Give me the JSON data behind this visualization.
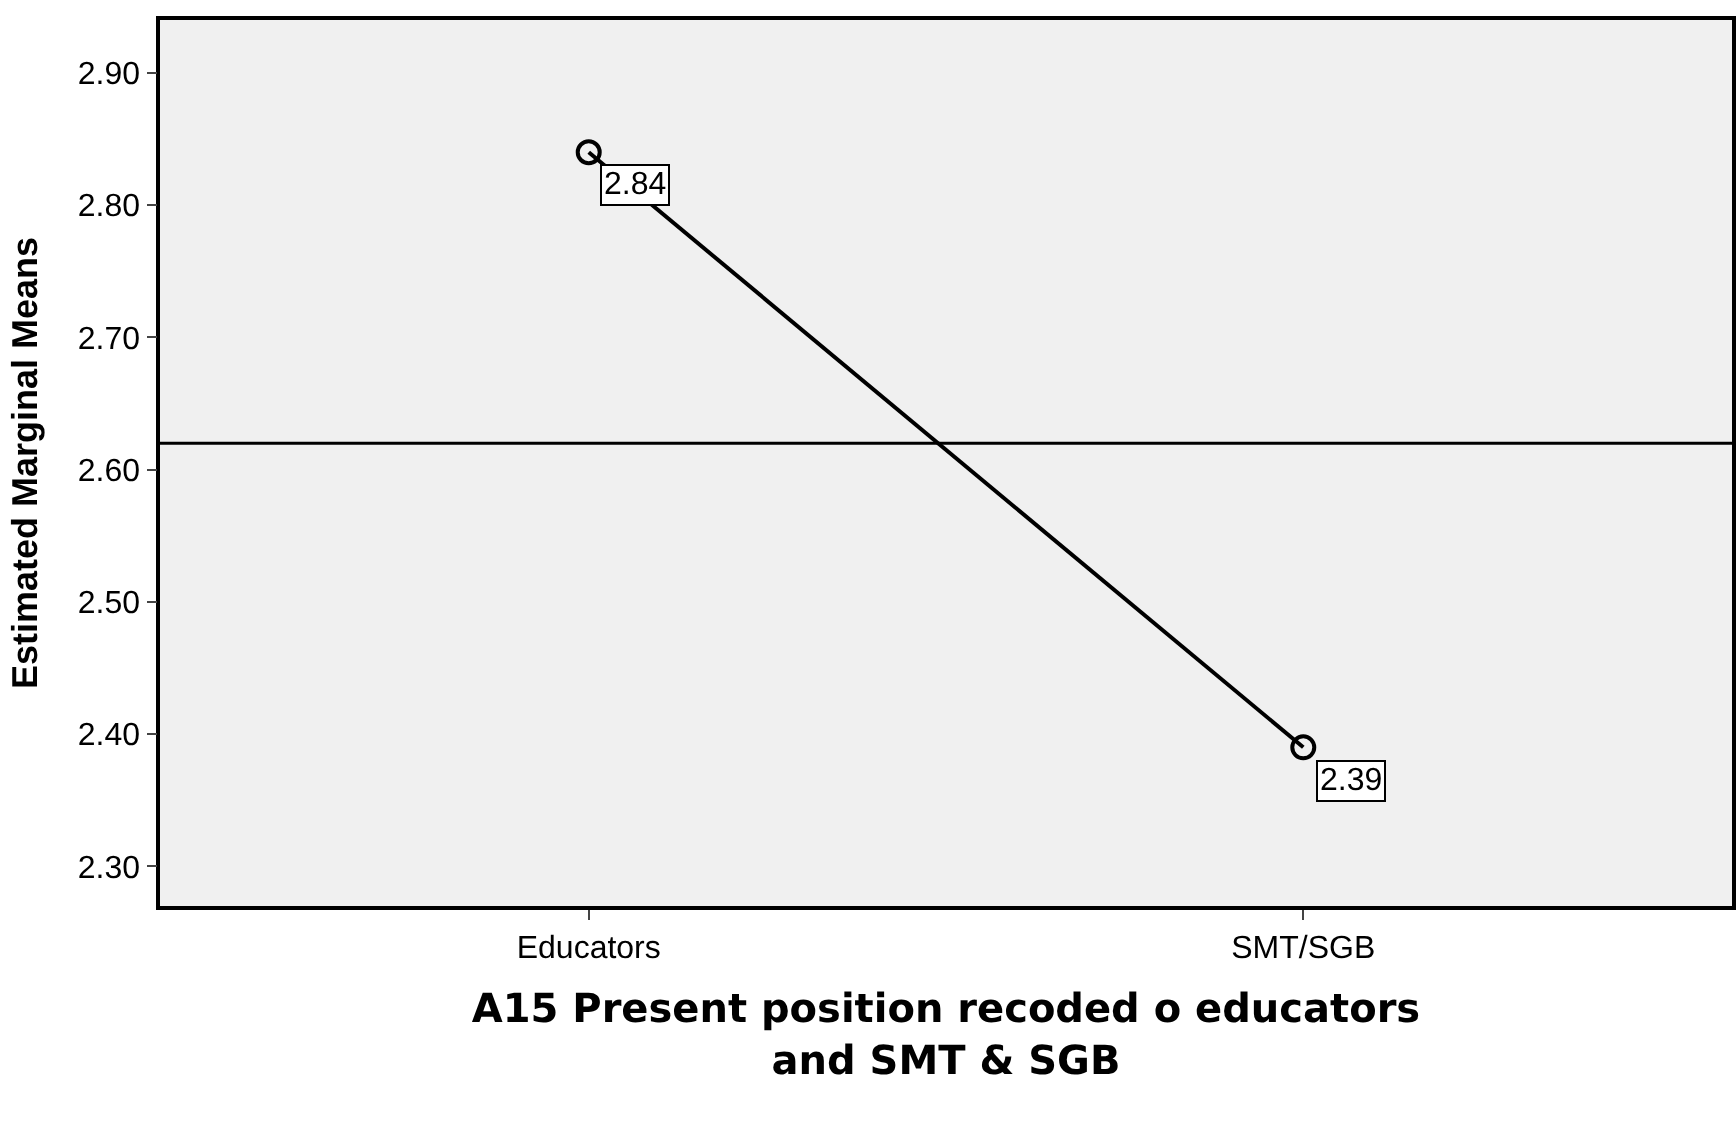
{
  "chart_data": {
    "type": "line",
    "xlabel": "A15 Present position recoded o educators\nand SMT & SGB",
    "ylabel": "Estimated Marginal Means",
    "categories": [
      "Educators",
      "SMT/SGB"
    ],
    "series": [
      {
        "color": "#000000",
        "values": [
          2.84,
          2.39
        ]
      }
    ],
    "ylim": [
      2.27,
      2.94
    ],
    "yticks": [
      {
        "value": 2.3,
        "label": "2.30"
      },
      {
        "value": 2.4,
        "label": "2.40"
      },
      {
        "value": 2.5,
        "label": "2.50"
      },
      {
        "value": 2.6,
        "label": "2.60"
      },
      {
        "value": 2.7,
        "label": "2.70"
      },
      {
        "value": 2.8,
        "label": "2.80"
      },
      {
        "value": 2.9,
        "label": "2.90"
      }
    ],
    "ref_lines": [
      {
        "axis": "y",
        "value": 2.62,
        "color": "#000000"
      }
    ],
    "data_labels": true,
    "marker": "circle",
    "line_style": "solid",
    "grid": false
  }
}
